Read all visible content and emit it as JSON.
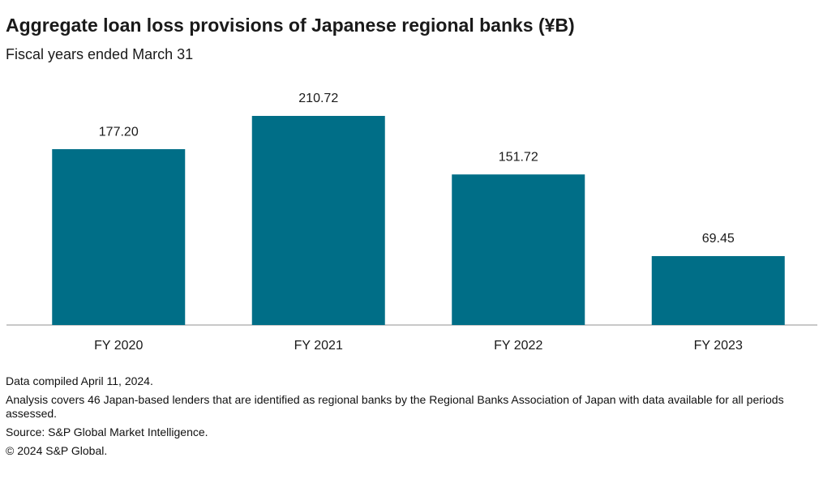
{
  "chart_data": {
    "type": "bar",
    "title": "Aggregate loan loss provisions of Japanese regional banks (¥B)",
    "subtitle": "Fiscal years ended March 31",
    "categories": [
      "FY 2020",
      "FY 2021",
      "FY 2022",
      "FY 2023"
    ],
    "values": [
      177.2,
      210.72,
      151.72,
      69.45
    ],
    "value_labels": [
      "177.20",
      "210.72",
      "151.72",
      "69.45"
    ],
    "color": "#006e87"
  },
  "notes": [
    "Data compiled April 11, 2024.",
    "Analysis covers 46 Japan-based lenders that are identified as regional banks by the Regional Banks Association of Japan with data available for all periods assessed.",
    "Source: S&P Global Market Intelligence.",
    "© 2024 S&P Global."
  ]
}
